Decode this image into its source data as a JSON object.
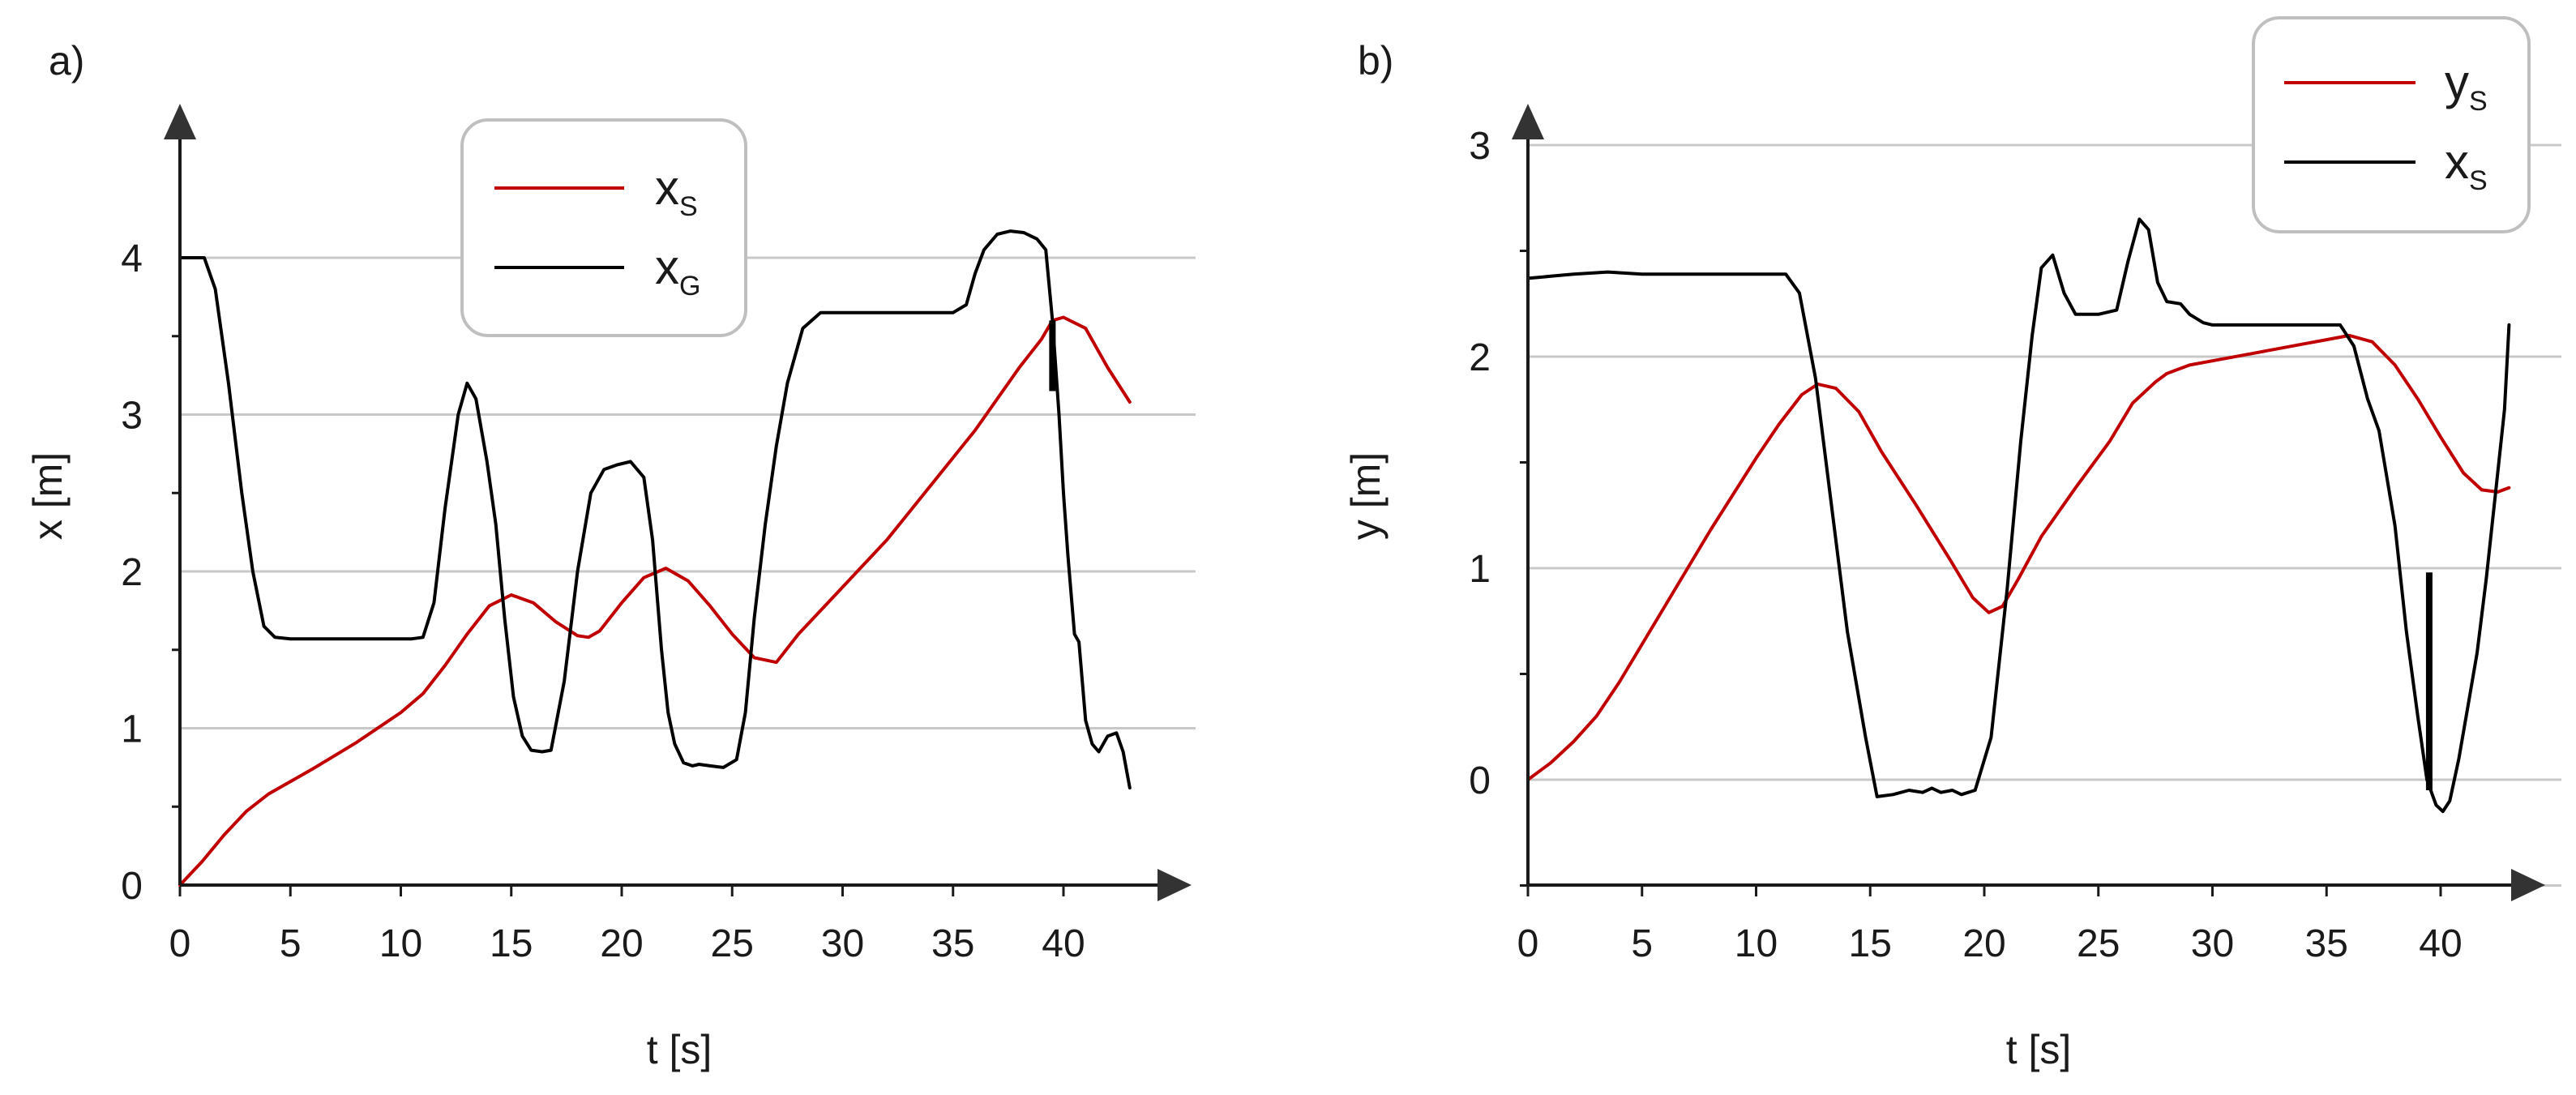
{
  "chart_data": [
    {
      "panel": "a)",
      "type": "line",
      "xlabel": "t [s]",
      "ylabel": "x [m]",
      "xlim": [
        0,
        43
      ],
      "ylim": [
        0,
        4.3
      ],
      "x_ticks": [
        0,
        5,
        10,
        15,
        20,
        25,
        30,
        35,
        40
      ],
      "x_tick_labels": [
        "0",
        "5",
        "10",
        "15",
        "20",
        "25",
        "30",
        "35",
        "40"
      ],
      "y_ticks": [
        0,
        1,
        2,
        3,
        4
      ],
      "y_tick_labels": [
        "0",
        "1",
        "2",
        "3",
        "4"
      ],
      "y_gridlines": [
        1,
        2,
        3,
        4
      ],
      "grid": "horizontal",
      "legend_position": "top-center",
      "series": [
        {
          "name": "x",
          "subscript": "S",
          "color": "#c00000",
          "x": [
            0,
            1,
            2,
            3,
            4,
            6,
            8,
            10,
            11,
            12,
            13,
            14,
            15,
            16,
            17,
            18,
            18.5,
            19,
            20,
            21,
            22,
            23,
            24,
            25,
            26,
            27,
            28,
            30,
            32,
            34,
            36,
            38,
            39,
            39.5,
            40,
            41,
            42,
            43
          ],
          "y": [
            0,
            0.15,
            0.32,
            0.47,
            0.58,
            0.74,
            0.91,
            1.1,
            1.22,
            1.4,
            1.6,
            1.78,
            1.85,
            1.8,
            1.68,
            1.59,
            1.58,
            1.62,
            1.8,
            1.96,
            2.02,
            1.94,
            1.78,
            1.6,
            1.45,
            1.42,
            1.6,
            1.9,
            2.2,
            2.55,
            2.9,
            3.3,
            3.48,
            3.6,
            3.62,
            3.55,
            3.3,
            3.08
          ]
        },
        {
          "name": "x",
          "subscript": "G",
          "color": "#000000",
          "x": [
            0,
            0.5,
            1.1,
            1.6,
            2.2,
            2.8,
            3.3,
            3.8,
            4.3,
            5,
            7,
            9,
            10.5,
            11,
            11.5,
            12,
            12.6,
            13,
            13.4,
            13.9,
            14.3,
            14.7,
            15.1,
            15.5,
            15.9,
            16.4,
            16.8,
            17.4,
            18,
            18.6,
            19.2,
            19.8,
            20.4,
            21,
            21.4,
            21.8,
            22.1,
            22.4,
            22.8,
            23.2,
            23.5,
            24,
            24.6,
            25.2,
            25.6,
            26,
            26.5,
            27,
            27.5,
            28.2,
            29,
            29.3,
            29.6,
            30,
            31,
            32,
            33,
            34,
            35,
            35.6,
            36,
            36.4,
            37,
            37.6,
            38.2,
            38.8,
            39.2,
            39.5,
            39.8,
            40,
            40.2,
            40.5,
            40.7,
            41,
            41.3,
            41.6,
            42,
            42.4,
            42.7,
            43
          ],
          "y": [
            4.0,
            4.0,
            4.0,
            3.8,
            3.2,
            2.5,
            2.0,
            1.65,
            1.58,
            1.57,
            1.57,
            1.57,
            1.57,
            1.58,
            1.8,
            2.4,
            3.0,
            3.2,
            3.1,
            2.7,
            2.3,
            1.7,
            1.2,
            0.95,
            0.86,
            0.85,
            0.86,
            1.3,
            2.0,
            2.5,
            2.65,
            2.68,
            2.7,
            2.6,
            2.2,
            1.5,
            1.1,
            0.9,
            0.78,
            0.76,
            0.77,
            0.76,
            0.75,
            0.8,
            1.1,
            1.7,
            2.3,
            2.8,
            3.2,
            3.55,
            3.65,
            3.65,
            3.65,
            3.65,
            3.65,
            3.65,
            3.65,
            3.65,
            3.65,
            3.7,
            3.9,
            4.05,
            4.15,
            4.17,
            4.16,
            4.12,
            4.05,
            3.6,
            3.0,
            2.5,
            2.1,
            1.6,
            1.55,
            1.05,
            0.9,
            0.85,
            0.95,
            0.97,
            0.85,
            0.62
          ]
        }
      ],
      "marker": {
        "x": 39.5,
        "y_from": 3.15,
        "y_to": 3.6,
        "color": "#000000"
      }
    },
    {
      "panel": "b)",
      "type": "line",
      "xlabel": "t [s]",
      "ylabel": "y [m]",
      "xlim": [
        0,
        43
      ],
      "ylim": [
        -0.5,
        3.3
      ],
      "x_ticks": [
        0,
        5,
        10,
        15,
        20,
        25,
        30,
        35,
        40
      ],
      "x_tick_labels": [
        "0",
        "5",
        "10",
        "15",
        "20",
        "25",
        "30",
        "35",
        "40"
      ],
      "y_ticks": [
        0,
        1,
        2,
        3
      ],
      "y_tick_labels": [
        "0",
        "1",
        "2",
        "3"
      ],
      "y_gridlines": [
        -0.5,
        0,
        1,
        2,
        3
      ],
      "grid": "horizontal",
      "legend_position": "top-right",
      "series": [
        {
          "name": "y",
          "subscript": "S",
          "color": "#c00000",
          "x": [
            0,
            1,
            2,
            3,
            4,
            6,
            8,
            10,
            11,
            12,
            12.7,
            13.5,
            14.5,
            15.5,
            17,
            18.5,
            19.5,
            20.2,
            20.8,
            21.5,
            22.5,
            24,
            25.5,
            26.5,
            27.5,
            28,
            29,
            30,
            32,
            34,
            35,
            36,
            37,
            38,
            39,
            40,
            41,
            41.8,
            42.5,
            43
          ],
          "y": [
            0,
            0.08,
            0.18,
            0.3,
            0.46,
            0.82,
            1.18,
            1.52,
            1.68,
            1.82,
            1.87,
            1.85,
            1.74,
            1.55,
            1.3,
            1.04,
            0.86,
            0.79,
            0.82,
            0.95,
            1.15,
            1.38,
            1.6,
            1.78,
            1.88,
            1.92,
            1.96,
            1.98,
            2.02,
            2.06,
            2.08,
            2.1,
            2.07,
            1.96,
            1.8,
            1.62,
            1.45,
            1.37,
            1.36,
            1.38
          ]
        },
        {
          "name": "x",
          "subscript": "S",
          "color": "#000000",
          "x": [
            0,
            1,
            2,
            3.5,
            5,
            7,
            9,
            10.5,
            11.3,
            11.9,
            12.6,
            13.3,
            14,
            14.8,
            15.3,
            16,
            16.7,
            17.3,
            17.7,
            18.1,
            18.6,
            19,
            19.6,
            20.3,
            21,
            21.6,
            22.1,
            22.5,
            23,
            23.5,
            24,
            25,
            25.8,
            26.3,
            26.8,
            27.2,
            27.6,
            28,
            28.6,
            29,
            29.6,
            30,
            31,
            32,
            33,
            34,
            35,
            35.6,
            36.2,
            36.8,
            37.3,
            38,
            38.5,
            39,
            39.4,
            39.8,
            40.1,
            40.4,
            40.8,
            41.2,
            41.6,
            42,
            42.4,
            42.8,
            43
          ],
          "y": [
            2.37,
            2.38,
            2.39,
            2.4,
            2.39,
            2.39,
            2.39,
            2.39,
            2.39,
            2.3,
            1.9,
            1.3,
            0.7,
            0.2,
            -0.08,
            -0.07,
            -0.05,
            -0.06,
            -0.04,
            -0.06,
            -0.05,
            -0.07,
            -0.05,
            0.2,
            0.9,
            1.6,
            2.1,
            2.42,
            2.48,
            2.3,
            2.2,
            2.2,
            2.22,
            2.45,
            2.65,
            2.6,
            2.35,
            2.26,
            2.25,
            2.2,
            2.16,
            2.15,
            2.15,
            2.15,
            2.15,
            2.15,
            2.15,
            2.15,
            2.05,
            1.8,
            1.65,
            1.2,
            0.7,
            0.3,
            0.0,
            -0.12,
            -0.15,
            -0.1,
            0.1,
            0.35,
            0.6,
            0.95,
            1.35,
            1.75,
            2.15
          ]
        }
      ],
      "marker": {
        "x": 39.5,
        "y_from": -0.05,
        "y_to": 0.98,
        "color": "#000000"
      }
    }
  ]
}
